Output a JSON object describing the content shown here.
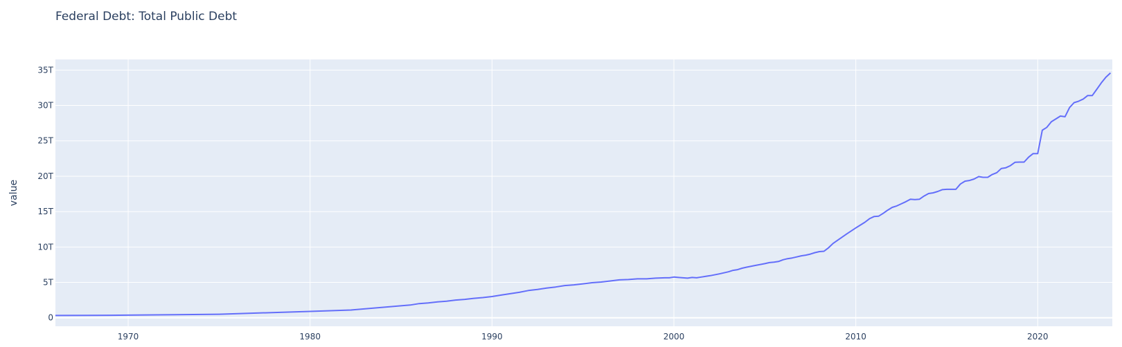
{
  "chart_data": {
    "type": "line",
    "title": "Federal Debt: Total Public Debt",
    "xlabel": "",
    "ylabel": "value",
    "xlim": [
      1966,
      2024.1
    ],
    "ylim": [
      -1.2,
      36.5
    ],
    "grid": true,
    "legend": "none",
    "x_ticks": [
      {
        "value": 1970,
        "label": "1970"
      },
      {
        "value": 1980,
        "label": "1980"
      },
      {
        "value": 1990,
        "label": "1990"
      },
      {
        "value": 2000,
        "label": "2000"
      },
      {
        "value": 2010,
        "label": "2010"
      },
      {
        "value": 2020,
        "label": "2020"
      }
    ],
    "y_ticks": [
      {
        "value": 0,
        "label": "0"
      },
      {
        "value": 5,
        "label": "5T"
      },
      {
        "value": 10,
        "label": "10T"
      },
      {
        "value": 15,
        "label": "15T"
      },
      {
        "value": 20,
        "label": "20T"
      },
      {
        "value": 25,
        "label": "25T"
      },
      {
        "value": 30,
        "label": "30T"
      },
      {
        "value": 35,
        "label": "35T"
      }
    ],
    "y_unit": "trillions of dollars",
    "series": [
      {
        "color": "#636efa",
        "x": [
          1966.0,
          1969.0,
          1970.0,
          1975.0,
          1980.0,
          1982.25,
          1985.5,
          1986.0,
          1986.5,
          1987.0,
          1987.5,
          1988.0,
          1988.5,
          1989.0,
          1989.5,
          1990.0,
          1990.5,
          1991.0,
          1991.5,
          1992.0,
          1992.5,
          1993.0,
          1993.5,
          1994.0,
          1994.5,
          1995.0,
          1995.5,
          1996.0,
          1996.5,
          1997.0,
          1997.5,
          1998.0,
          1998.5,
          1999.0,
          1999.5,
          1999.75,
          2000.0,
          2000.25,
          2000.5,
          2000.75,
          2001.0,
          2001.25,
          2001.5,
          2001.75,
          2002.0,
          2002.5,
          2003.0,
          2003.25,
          2003.5,
          2003.75,
          2004.0,
          2004.5,
          2005.0,
          2005.25,
          2005.5,
          2005.75,
          2006.0,
          2006.25,
          2006.5,
          2006.75,
          2007.0,
          2007.25,
          2007.5,
          2007.75,
          2008.0,
          2008.25,
          2008.5,
          2008.75,
          2009.0,
          2009.5,
          2010.0,
          2010.25,
          2010.5,
          2010.75,
          2011.0,
          2011.25,
          2011.5,
          2011.75,
          2012.0,
          2012.25,
          2012.5,
          2012.75,
          2013.0,
          2013.25,
          2013.5,
          2013.75,
          2014.0,
          2014.25,
          2014.5,
          2014.75,
          2015.0,
          2015.25,
          2015.5,
          2015.75,
          2016.0,
          2016.25,
          2016.5,
          2016.75,
          2017.0,
          2017.25,
          2017.5,
          2017.75,
          2018.0,
          2018.25,
          2018.5,
          2018.75,
          2019.0,
          2019.25,
          2019.5,
          2019.75,
          2020.0,
          2020.25,
          2020.5,
          2020.75,
          2021.0,
          2021.25,
          2021.5,
          2021.75,
          2022.0,
          2022.25,
          2022.5,
          2022.75,
          2023.0,
          2023.25,
          2023.5,
          2023.75,
          2024.0
        ],
        "y": [
          0.32,
          0.35,
          0.37,
          0.5,
          0.9,
          1.1,
          1.8,
          2.0,
          2.1,
          2.25,
          2.35,
          2.5,
          2.6,
          2.75,
          2.85,
          3.0,
          3.2,
          3.4,
          3.6,
          3.85,
          4.0,
          4.2,
          4.35,
          4.55,
          4.65,
          4.8,
          4.95,
          5.05,
          5.2,
          5.35,
          5.4,
          5.5,
          5.5,
          5.6,
          5.65,
          5.65,
          5.75,
          5.7,
          5.65,
          5.6,
          5.7,
          5.65,
          5.75,
          5.85,
          5.95,
          6.2,
          6.5,
          6.7,
          6.8,
          7.0,
          7.15,
          7.4,
          7.65,
          7.8,
          7.85,
          7.95,
          8.2,
          8.35,
          8.45,
          8.6,
          8.75,
          8.85,
          9.0,
          9.2,
          9.35,
          9.4,
          9.9,
          10.5,
          10.95,
          11.85,
          12.7,
          13.1,
          13.5,
          14.0,
          14.3,
          14.35,
          14.75,
          15.2,
          15.6,
          15.8,
          16.1,
          16.4,
          16.75,
          16.7,
          16.75,
          17.2,
          17.55,
          17.65,
          17.85,
          18.1,
          18.15,
          18.15,
          18.15,
          18.9,
          19.3,
          19.4,
          19.6,
          19.95,
          19.85,
          19.85,
          20.25,
          20.5,
          21.1,
          21.2,
          21.5,
          21.97,
          22.0,
          22.0,
          22.7,
          23.2,
          23.2,
          26.5,
          26.9,
          27.7,
          28.1,
          28.5,
          28.4,
          29.7,
          30.4,
          30.6,
          30.9,
          31.4,
          31.4,
          32.3,
          33.2,
          34.0,
          34.6
        ]
      }
    ]
  }
}
